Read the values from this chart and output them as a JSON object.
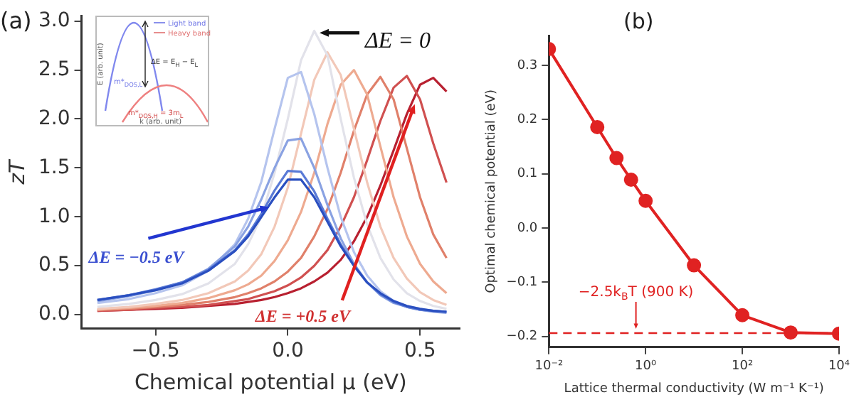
{
  "chart_data": [
    {
      "type": "line",
      "title": "(a)",
      "xlabel": "Chemical potential μ (eV)",
      "ylabel": "zT",
      "x": [
        -0.72,
        -0.6,
        -0.5,
        -0.4,
        -0.3,
        -0.2,
        -0.15,
        -0.1,
        -0.05,
        0,
        0.05,
        0.1,
        0.15,
        0.2,
        0.25,
        0.3,
        0.35,
        0.4,
        0.45,
        0.5,
        0.55,
        0.6
      ],
      "series": [
        {
          "color": "#2a4fc0",
          "values": [
            0.15,
            0.2,
            0.25,
            0.32,
            0.45,
            0.65,
            0.8,
            1.0,
            1.2,
            1.38,
            1.38,
            1.2,
            0.95,
            0.7,
            0.5,
            0.33,
            0.22,
            0.14,
            0.09,
            0.06,
            0.04,
            0.03
          ]
        },
        {
          "color": "#5a7ad6",
          "values": [
            0.15,
            0.2,
            0.26,
            0.33,
            0.46,
            0.66,
            0.82,
            1.03,
            1.27,
            1.47,
            1.46,
            1.26,
            0.98,
            0.72,
            0.5,
            0.33,
            0.21,
            0.13,
            0.08,
            0.05,
            0.04,
            0.03
          ]
        },
        {
          "color": "#8aa2e2",
          "values": [
            0.14,
            0.19,
            0.25,
            0.33,
            0.47,
            0.7,
            0.9,
            1.18,
            1.5,
            1.78,
            1.8,
            1.5,
            1.12,
            0.78,
            0.52,
            0.33,
            0.2,
            0.12,
            0.08,
            0.05,
            0.03,
            0.02
          ]
        },
        {
          "color": "#b5c4ee",
          "values": [
            0.12,
            0.16,
            0.22,
            0.3,
            0.45,
            0.72,
            0.98,
            1.36,
            1.9,
            2.42,
            2.48,
            2.05,
            1.5,
            1.0,
            0.64,
            0.4,
            0.24,
            0.14,
            0.09,
            0.06,
            0.04,
            0.03
          ]
        },
        {
          "color": "#e2e2ea",
          "values": [
            0.08,
            0.11,
            0.15,
            0.21,
            0.32,
            0.52,
            0.72,
            1.0,
            1.45,
            2.0,
            2.6,
            2.9,
            2.65,
            2.0,
            1.4,
            0.92,
            0.58,
            0.36,
            0.22,
            0.14,
            0.09,
            0.06
          ]
        },
        {
          "color": "#f2c8b8",
          "values": [
            0.06,
            0.08,
            0.11,
            0.15,
            0.22,
            0.34,
            0.45,
            0.62,
            0.9,
            1.3,
            1.85,
            2.4,
            2.68,
            2.45,
            1.9,
            1.35,
            0.9,
            0.58,
            0.37,
            0.23,
            0.15,
            0.1
          ]
        },
        {
          "color": "#eeaa90",
          "values": [
            0.05,
            0.07,
            0.09,
            0.12,
            0.17,
            0.25,
            0.31,
            0.4,
            0.55,
            0.76,
            1.05,
            1.45,
            1.95,
            2.35,
            2.5,
            2.25,
            1.72,
            1.2,
            0.8,
            0.52,
            0.34,
            0.22
          ]
        },
        {
          "color": "#e0806a",
          "values": [
            0.05,
            0.06,
            0.08,
            0.1,
            0.13,
            0.18,
            0.22,
            0.27,
            0.34,
            0.44,
            0.58,
            0.8,
            1.08,
            1.45,
            1.88,
            2.25,
            2.43,
            2.2,
            1.7,
            1.2,
            0.82,
            0.58
          ]
        },
        {
          "color": "#d05050",
          "values": [
            0.04,
            0.05,
            0.07,
            0.08,
            0.1,
            0.14,
            0.16,
            0.2,
            0.24,
            0.3,
            0.38,
            0.5,
            0.66,
            0.9,
            1.2,
            1.58,
            1.98,
            2.32,
            2.44,
            2.2,
            1.75,
            1.35
          ]
        },
        {
          "color": "#b82030",
          "values": [
            0.04,
            0.05,
            0.06,
            0.07,
            0.09,
            0.11,
            0.13,
            0.15,
            0.18,
            0.22,
            0.27,
            0.34,
            0.43,
            0.56,
            0.75,
            1.0,
            1.32,
            1.68,
            2.05,
            2.35,
            2.42,
            2.28
          ]
        }
      ],
      "xlim": [
        -0.78,
        0.65
      ],
      "ylim": [
        -0.14,
        3.05
      ],
      "xticks": [
        {
          "value": -0.5,
          "label": "−0.5"
        },
        {
          "value": 0,
          "label": "0.0"
        },
        {
          "value": 0.5,
          "label": "0.5"
        }
      ],
      "yticks": [
        {
          "value": 0,
          "label": "0.0"
        },
        {
          "value": 0.5,
          "label": "0.5"
        },
        {
          "value": 1,
          "label": "1.0"
        },
        {
          "value": 1.5,
          "label": "1.5"
        },
        {
          "value": 2,
          "label": "2.0"
        },
        {
          "value": 2.5,
          "label": "2.5"
        },
        {
          "value": 3,
          "label": "3.0"
        }
      ],
      "marker": "none",
      "legend": false,
      "grid": false,
      "annotations": [
        {
          "text": "ΔE = 0",
          "x": 0.12,
          "y": 2.88
        },
        {
          "text": "ΔE = −0.5 eV",
          "x": -0.07,
          "y": 1.1
        },
        {
          "text": "ΔE = +0.5 eV",
          "x": 0.48,
          "y": 2.15
        },
        "Light band",
        "Heavy band",
        "ΔE = E$_{H}$ − E$_{L}$",
        "m*$_{DOS,L}$",
        "m*$_{DOS,H}$ = 3m$_{L}$",
        "E (arb. unit)",
        "k (arb. unit)"
      ]
    },
    {
      "type": "line",
      "title": "(b)",
      "xlabel": "Lattice thermal conductivity (W m⁻¹ K⁻¹)",
      "ylabel": "Optimal chemical potential (eV)",
      "x": [
        0.01,
        0.1,
        0.25,
        0.5,
        1,
        10,
        100,
        1000,
        10000
      ],
      "series": [
        {
          "color": "#e02222",
          "values": [
            0.33,
            0.186,
            0.129,
            0.089,
            0.05,
            -0.069,
            -0.161,
            -0.193,
            -0.195
          ]
        }
      ],
      "log": "x",
      "xlim": [
        0.01,
        10000
      ],
      "ylim": [
        -0.22,
        0.355
      ],
      "xticks": [
        {
          "value": 0.01,
          "label": "10⁻²"
        },
        {
          "value": 1,
          "label": "10⁰"
        },
        {
          "value": 100,
          "label": "10²"
        },
        {
          "value": 10000,
          "label": "10⁴"
        }
      ],
      "yticks": [
        {
          "value": -0.2,
          "label": "−0.2"
        },
        {
          "value": -0.1,
          "label": "−0.1"
        },
        {
          "value": 0,
          "label": "0.0"
        },
        0.1,
        0.2,
        0.3
      ],
      "marker": "circle",
      "line_style": "solid",
      "legend": false,
      "grid": false,
      "ref_lines": [
        {
          "axis": "y",
          "value": -0.194,
          "label": "−2.5k$_{B}$T (900 K)",
          "color": "#e02222",
          "line_style": "dashed"
        }
      ]
    }
  ]
}
